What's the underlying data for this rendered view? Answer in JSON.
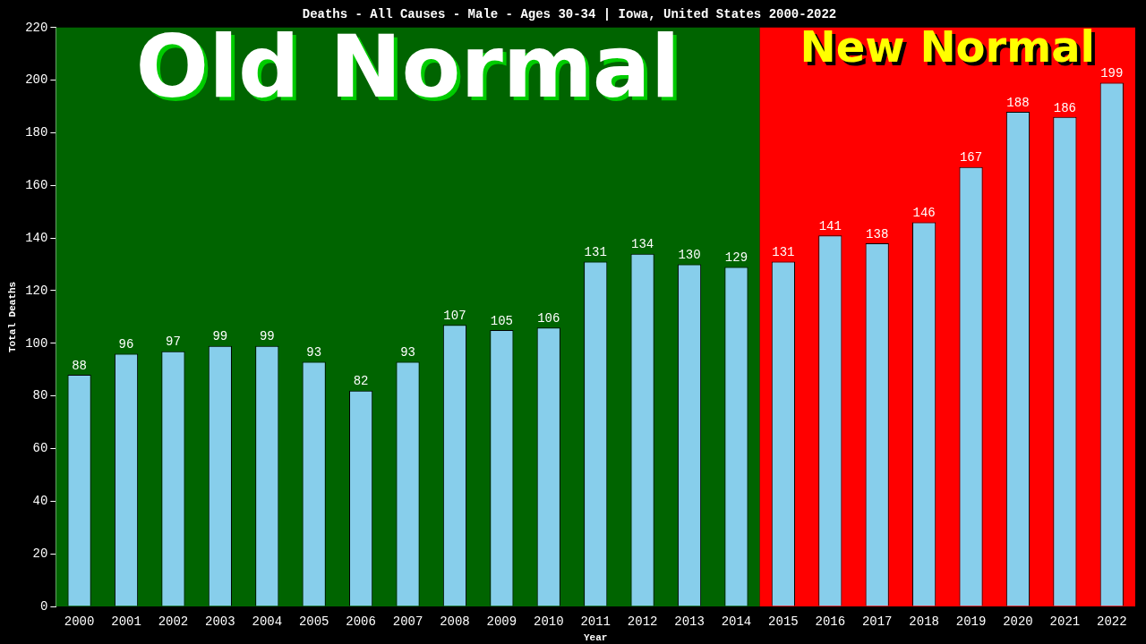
{
  "chart_data": {
    "type": "bar",
    "title": "Deaths - All Causes - Male - Ages 30-34 | Iowa, United States 2000-2022",
    "xlabel": "Year",
    "ylabel": "Total Deaths",
    "categories": [
      "2000",
      "2001",
      "2002",
      "2003",
      "2004",
      "2005",
      "2006",
      "2007",
      "2008",
      "2009",
      "2010",
      "2011",
      "2012",
      "2013",
      "2014",
      "2015",
      "2016",
      "2017",
      "2018",
      "2019",
      "2020",
      "2021",
      "2022"
    ],
    "values": [
      88,
      96,
      97,
      99,
      99,
      93,
      82,
      93,
      107,
      105,
      106,
      131,
      134,
      130,
      129,
      131,
      141,
      138,
      146,
      167,
      188,
      186,
      199
    ],
    "color": "#87ceeb",
    "ylim": [
      0,
      220
    ],
    "yticks": [
      0,
      20,
      40,
      60,
      80,
      100,
      120,
      140,
      160,
      180,
      200,
      220
    ],
    "grid": false,
    "legend": false,
    "data_labels": true,
    "bands": [
      {
        "axis": "x",
        "from": "2000",
        "to": "2014",
        "label": "Old Normal",
        "color": "#006400"
      },
      {
        "axis": "x",
        "from": "2015",
        "to": "2022",
        "label": "New Normal",
        "color": "#ff0000"
      }
    ]
  }
}
